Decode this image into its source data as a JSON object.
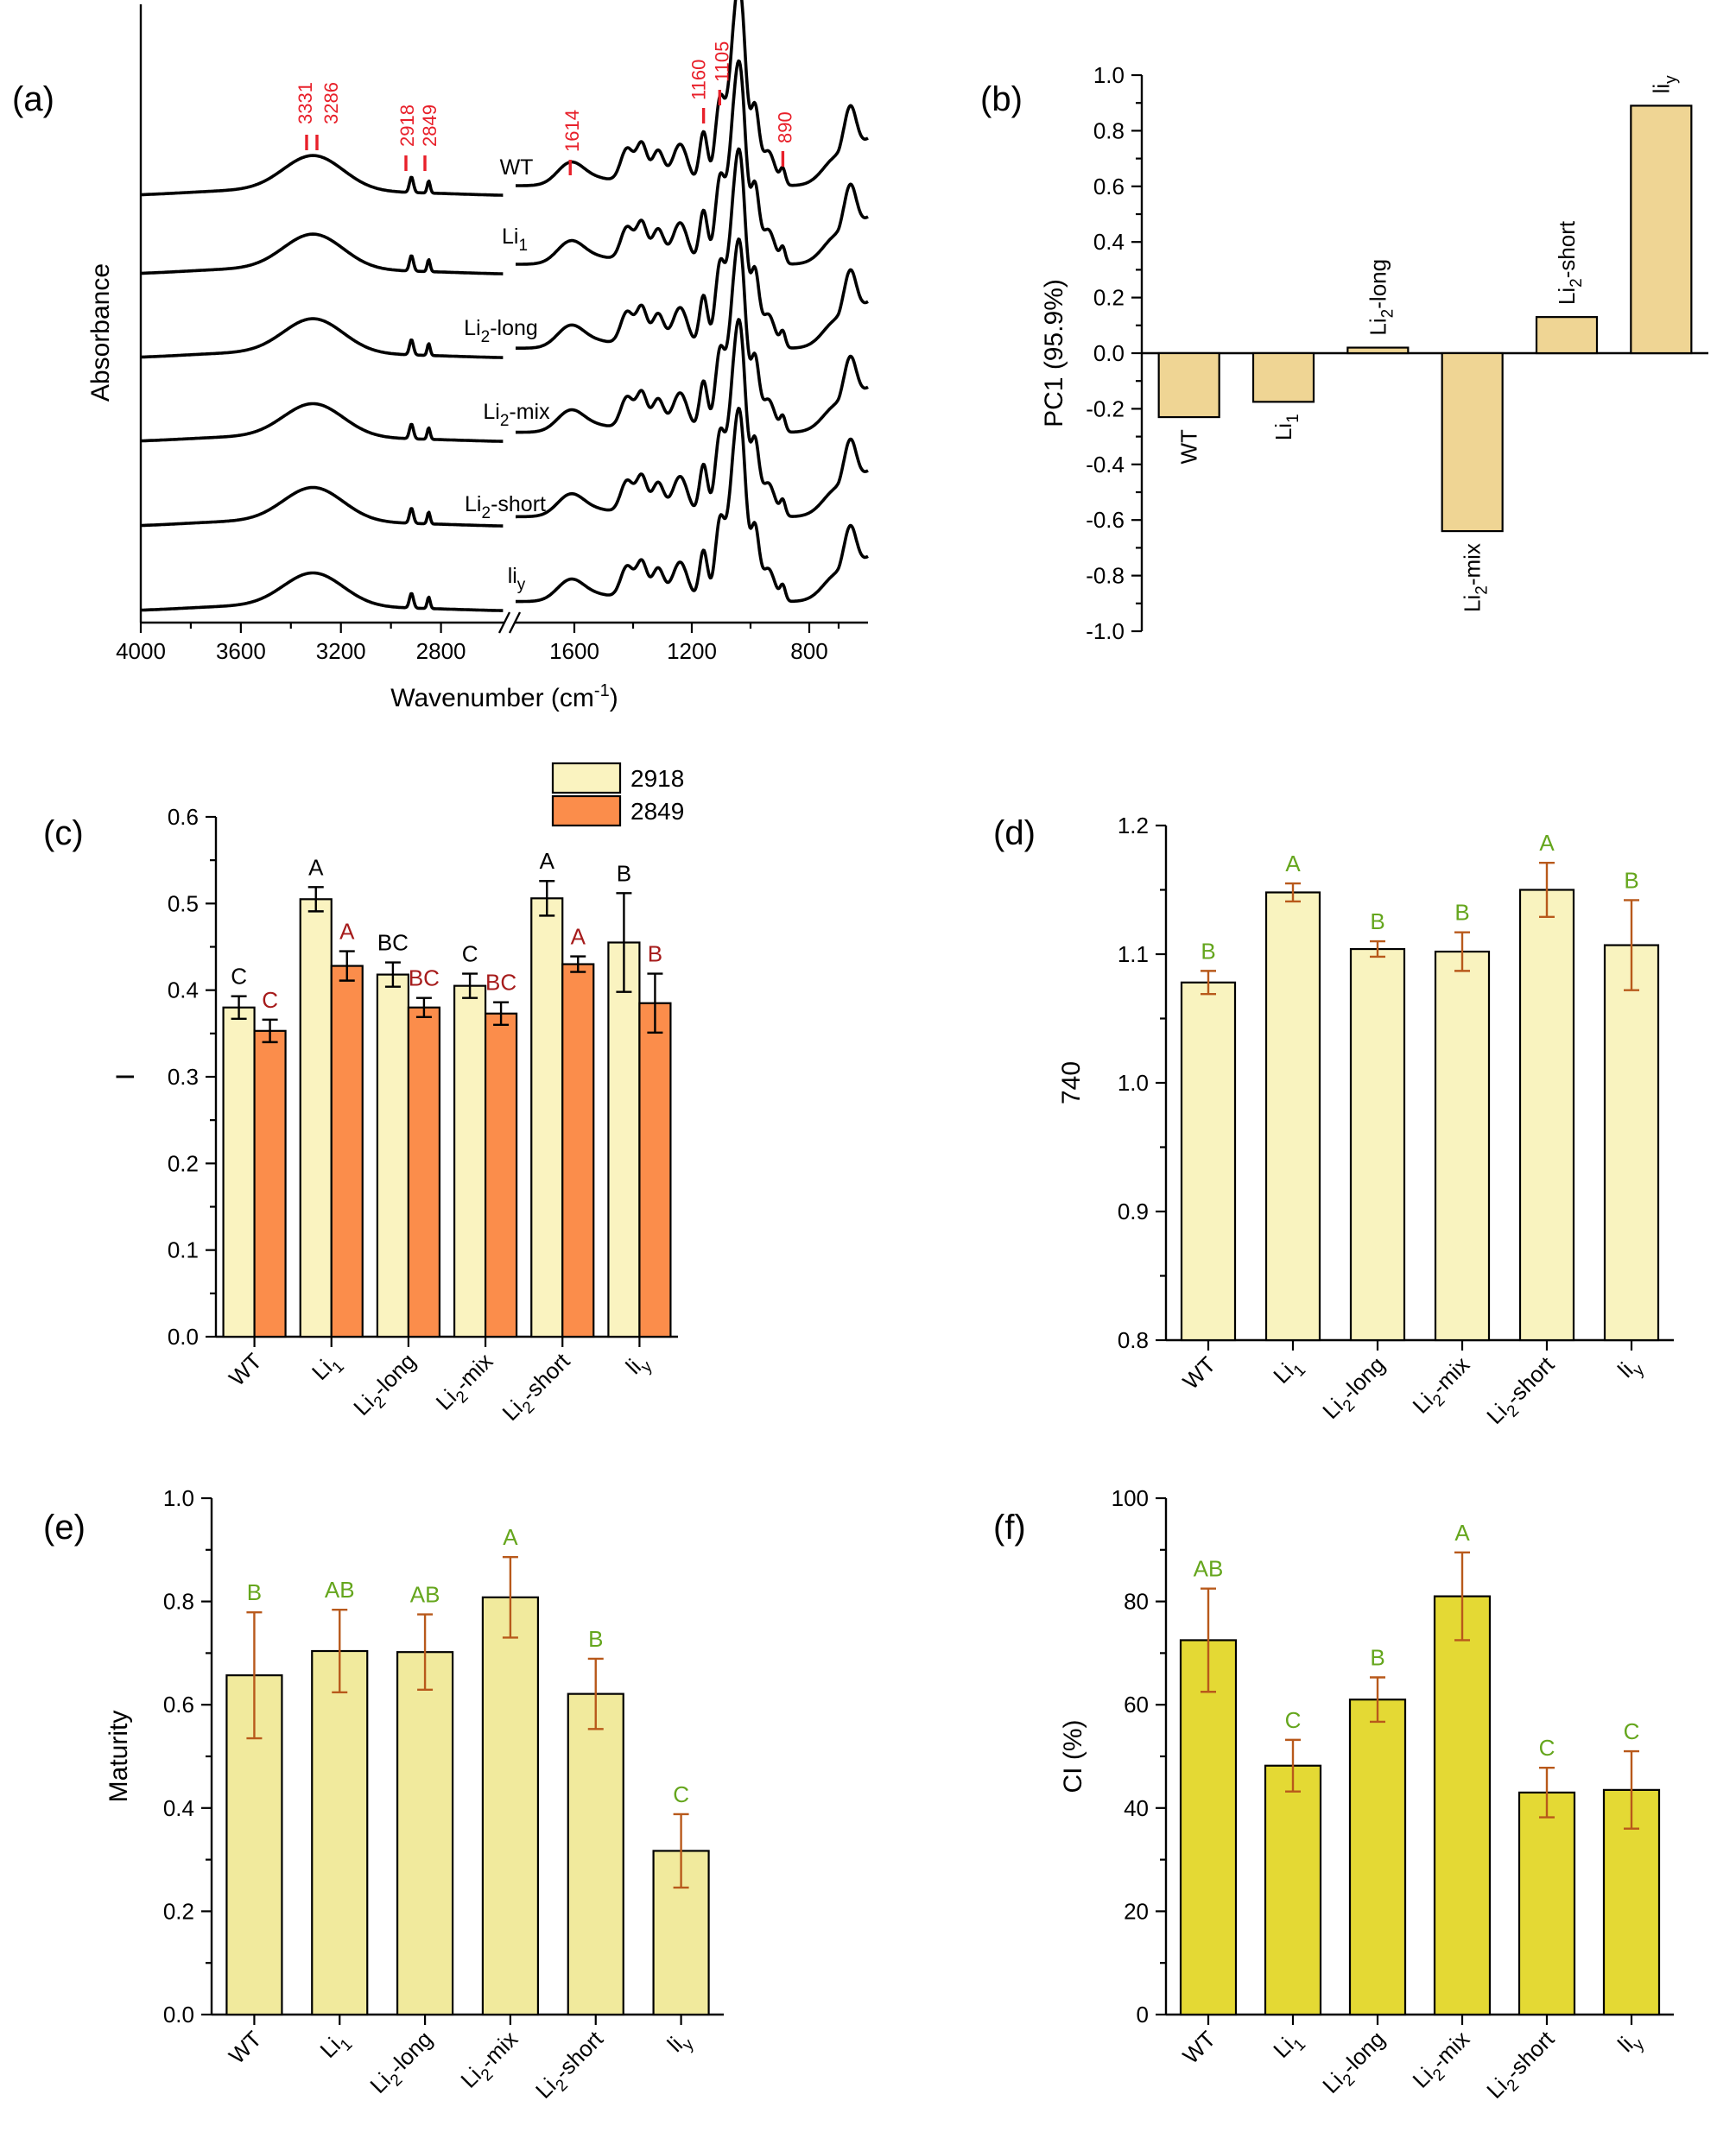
{
  "colors": {
    "c_2918": "#faf3c0",
    "c_2849": "#fb8d4b",
    "b_bar": "#efd594",
    "d_bar": "#f9f3bf",
    "e_bar": "#f1ea9d",
    "f_bar": "#e4d934",
    "green_letters": "#65a61d",
    "dark_red_letters": "#a61b1b",
    "err_orange": "#b8591b",
    "peak_red": "#e8202a"
  },
  "panels": {
    "a": {
      "label": "(a)"
    },
    "b": {
      "label": "(b)"
    },
    "c": {
      "label": "(c)"
    },
    "d": {
      "label": "(d)"
    },
    "e": {
      "label": "(e)"
    },
    "f": {
      "label": "(f)"
    }
  },
  "chart_data": [
    {
      "id": "a",
      "type": "line",
      "title": "",
      "xlabel": "Wavenumber (cm",
      "xlabel_sup": "-1",
      "xlabel_end": ")",
      "ylabel": "Absorbance",
      "x_axis_reversed": true,
      "x_segments": [
        [
          4000,
          2550
        ],
        [
          1800,
          600
        ]
      ],
      "xticks": [
        4000,
        3600,
        3200,
        2800,
        1600,
        1200,
        800
      ],
      "series": [
        {
          "name": "WT",
          "base": "WT",
          "sub": ""
        },
        {
          "name": "Li1",
          "base": "Li",
          "sub": "1"
        },
        {
          "name": "Li2-long",
          "base": "Li",
          "sub": "2",
          "suffix": "-long"
        },
        {
          "name": "Li2-mix",
          "base": "Li",
          "sub": "2",
          "suffix": "-mix"
        },
        {
          "name": "Li2-short",
          "base": "Li",
          "sub": "2",
          "suffix": "-short"
        },
        {
          "name": "liy",
          "base": "li",
          "sub": "y"
        }
      ],
      "annotations": [
        "3331",
        "3286",
        "2918",
        "2849",
        "1614",
        "1160",
        "1105",
        "890"
      ]
    },
    {
      "id": "b",
      "type": "bar",
      "ylabel": "PC1 (95.9%)",
      "ylim": [
        -1.0,
        1.0
      ],
      "yticks": [
        -1.0,
        -0.8,
        -0.6,
        -0.4,
        -0.2,
        0.0,
        0.2,
        0.4,
        0.6,
        0.8,
        1.0
      ],
      "categories": [
        {
          "base": "WT",
          "sub": "",
          "suffix": ""
        },
        {
          "base": "Li",
          "sub": "1",
          "suffix": ""
        },
        {
          "base": "Li",
          "sub": "2",
          "suffix": "-long"
        },
        {
          "base": "Li",
          "sub": "2",
          "suffix": "-mix"
        },
        {
          "base": "Li",
          "sub": "2",
          "suffix": "-short"
        },
        {
          "base": "li",
          "sub": "y",
          "suffix": ""
        }
      ],
      "values": [
        -0.23,
        -0.175,
        0.02,
        -0.64,
        0.13,
        0.89
      ]
    },
    {
      "id": "c",
      "type": "bar",
      "ylabel": "I",
      "ylim": [
        0.0,
        0.6
      ],
      "yticks": [
        0.0,
        0.1,
        0.2,
        0.3,
        0.4,
        0.5,
        0.6
      ],
      "categories": [
        "WT",
        "Li1",
        "Li2-long",
        "Li2-mix",
        "Li2-short",
        "liy"
      ],
      "legend": [
        "2918",
        "2849"
      ],
      "series": [
        {
          "name": "2918",
          "values": [
            0.38,
            0.505,
            0.418,
            0.405,
            0.506,
            0.455
          ],
          "errors": [
            0.013,
            0.014,
            0.014,
            0.014,
            0.02,
            0.057
          ],
          "letters": [
            "C",
            "A",
            "BC",
            "C",
            "A",
            "B"
          ]
        },
        {
          "name": "2849",
          "values": [
            0.353,
            0.428,
            0.38,
            0.373,
            0.43,
            0.385
          ],
          "errors": [
            0.013,
            0.017,
            0.011,
            0.013,
            0.009,
            0.034
          ],
          "letters": [
            "C",
            "A",
            "BC",
            "BC",
            "A",
            "B"
          ]
        }
      ]
    },
    {
      "id": "d",
      "type": "bar",
      "ylabel": "740",
      "ylim": [
        0.8,
        1.2
      ],
      "yticks": [
        0.8,
        0.9,
        1.0,
        1.1,
        1.2
      ],
      "categories": [
        "WT",
        "Li1",
        "Li2-long",
        "Li2-mix",
        "Li2-short",
        "liy"
      ],
      "values": [
        1.078,
        1.148,
        1.104,
        1.102,
        1.15,
        1.107
      ],
      "errors": [
        0.009,
        0.007,
        0.006,
        0.015,
        0.021,
        0.035
      ],
      "letters": [
        "B",
        "A",
        "B",
        "B",
        "A",
        "B"
      ]
    },
    {
      "id": "e",
      "type": "bar",
      "ylabel": "Maturity",
      "ylim": [
        0.0,
        1.0
      ],
      "yticks": [
        0.0,
        0.2,
        0.4,
        0.6,
        0.8,
        1.0
      ],
      "categories": [
        "WT",
        "Li1",
        "Li2-long",
        "Li2-mix",
        "Li2-short",
        "liy"
      ],
      "values": [
        0.657,
        0.704,
        0.702,
        0.808,
        0.621,
        0.317
      ],
      "errors": [
        0.122,
        0.08,
        0.073,
        0.078,
        0.068,
        0.071
      ],
      "letters": [
        "B",
        "AB",
        "AB",
        "A",
        "B",
        "C"
      ]
    },
    {
      "id": "f",
      "type": "bar",
      "ylabel": "CI (%)",
      "ylim": [
        0,
        100
      ],
      "yticks": [
        0,
        20,
        40,
        60,
        80,
        100
      ],
      "categories": [
        "WT",
        "Li1",
        "Li2-long",
        "Li2-mix",
        "Li2-short",
        "liy"
      ],
      "values": [
        72.5,
        48.2,
        61.0,
        81.0,
        43.0,
        43.5
      ],
      "errors": [
        10.0,
        5.0,
        4.3,
        8.5,
        4.8,
        7.5
      ],
      "letters": [
        "AB",
        "C",
        "B",
        "A",
        "C",
        "C"
      ]
    }
  ]
}
